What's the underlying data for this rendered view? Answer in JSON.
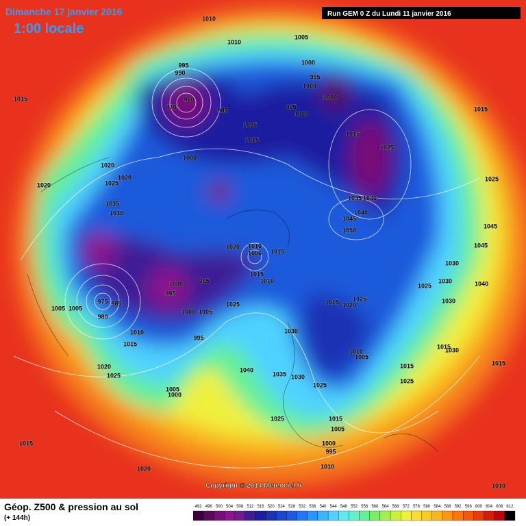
{
  "header": {
    "date": "Dimanche 17 janvier 2016",
    "time": "1:00 locale",
    "run": "Run GEM 0 Z du Lundi 11 janvier 2016"
  },
  "copyright": "Copyright © 2014 Meteociel.fr",
  "footer": {
    "title": "Géop. Z500 & pression au sol",
    "lead": "(+ 144h)"
  },
  "scale": {
    "labels": [
      492,
      496,
      500,
      504,
      508,
      512,
      516,
      520,
      524,
      528,
      532,
      536,
      540,
      544,
      548,
      552,
      556,
      560,
      564,
      568,
      572,
      576,
      580,
      584,
      588,
      592,
      596,
      600,
      604,
      608,
      612
    ],
    "colors": [
      "#3c003c",
      "#5a0a5a",
      "#780f78",
      "#8c148c",
      "#6e1e8c",
      "#3c1e96",
      "#1e1ea0",
      "#1e32b4",
      "#1e46c8",
      "#1e5adc",
      "#1e78f0",
      "#2896ff",
      "#3cb4ff",
      "#50d2ff",
      "#64e6f0",
      "#64f0c8",
      "#64f096",
      "#78f064",
      "#a0f050",
      "#c8f03c",
      "#f0f03c",
      "#fadc32",
      "#fac828",
      "#fab41e",
      "#fa9614",
      "#fa780a",
      "#f05a0a",
      "#e63c0a",
      "#d21e0a",
      "#b40a0a",
      "#000000"
    ]
  },
  "isobar_labels": [
    1010,
    1010,
    1005,
    1015,
    995,
    990,
    1000,
    995,
    1000,
    1000,
    970,
    960,
    985,
    995,
    1000,
    1005,
    1015,
    1015,
    1015,
    1025,
    1000,
    1020,
    1020,
    1025,
    1020,
    1025,
    1035,
    1030,
    1035,
    1030,
    1040,
    1045,
    1050,
    1045,
    1020,
    1010,
    1006,
    1015,
    1045,
    1030,
    995,
    1000,
    1015,
    1010,
    1030,
    1025,
    995,
    975,
    985,
    1025,
    1015,
    1025,
    1020,
    1030,
    1040,
    1005,
    1005,
    1000,
    1005,
    980,
    1030,
    1010,
    995,
    1015,
    1010,
    1005,
    1015,
    1030,
    1015,
    1020,
    1025,
    1040,
    1035,
    1030,
    1015,
    1025,
    1005,
    1000,
    1025,
    1025,
    1015,
    1005,
    1000,
    995,
    1015,
    1010,
    1020,
    1010
  ]
}
